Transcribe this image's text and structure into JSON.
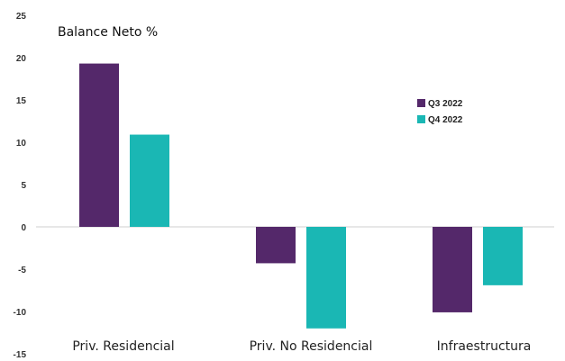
{
  "chart_data": {
    "type": "bar",
    "title": "Balance Neto %",
    "categories": [
      "Priv. Residencial",
      "Priv. No Residencial",
      "Infraestructura"
    ],
    "series": [
      {
        "name": "Q3 2022",
        "color": "#54286a",
        "values": [
          19.3,
          -4.3,
          -10.1
        ]
      },
      {
        "name": "Q4 2022",
        "color": "#1ab7b4",
        "values": [
          10.9,
          -12.0,
          -6.9
        ]
      }
    ],
    "ylim": [
      -15,
      25
    ],
    "yticks": [
      "25",
      "20",
      "15",
      "10",
      "5",
      "0",
      "-5",
      "-10",
      "-15"
    ],
    "grid": false,
    "legend_position": "right"
  }
}
